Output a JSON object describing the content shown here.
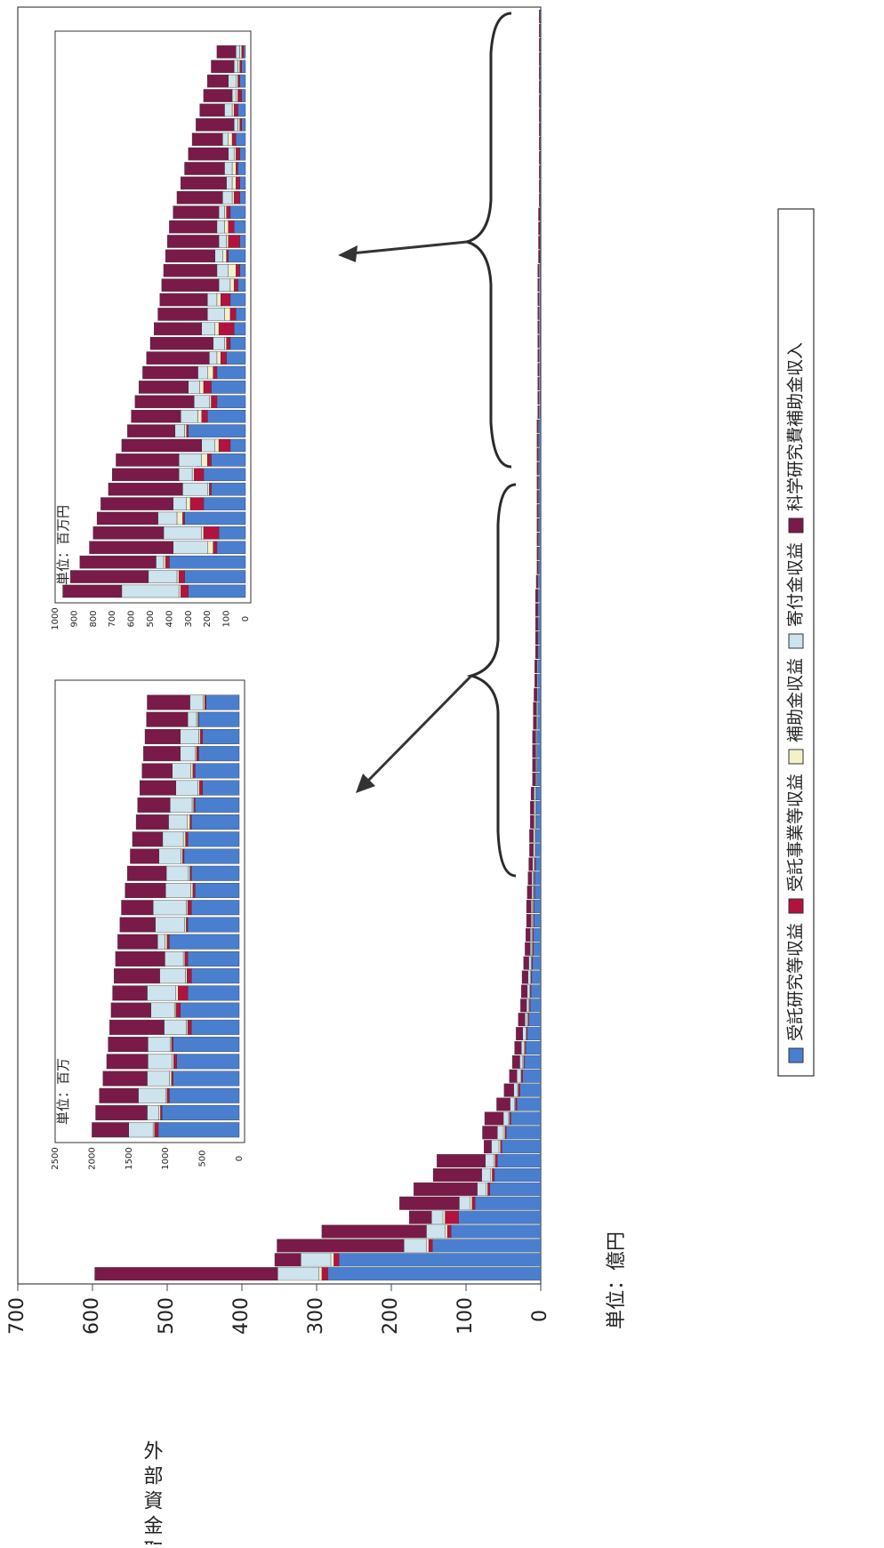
{
  "chart_data": [
    {
      "type": "bar",
      "stacked": true,
      "orientation": "horizontal-in-rotated-page",
      "ylabel": "外部資金取得額",
      "unit": "単位：億円",
      "ylim": [
        0,
        700
      ],
      "yticks": [
        "0",
        "100",
        "200",
        "300",
        "400",
        "500",
        "600",
        "700"
      ],
      "legend_position": "right-vertical",
      "colors": [
        "#4a7fd0",
        "#b3123f",
        "#f4f0c8",
        "#cde3ee",
        "#7a1a48"
      ],
      "series": [
        {
          "name": "受託研究等収益",
          "values": [
            285,
            270,
            145,
            120,
            110,
            88,
            68,
            62,
            58,
            52,
            46,
            40,
            32,
            28,
            24,
            22,
            20,
            18,
            16,
            14,
            13,
            12,
            11,
            10,
            10,
            9,
            9,
            8,
            8,
            7,
            7,
            7,
            6,
            6,
            6,
            5,
            5,
            5,
            5,
            4,
            4,
            4,
            4,
            4,
            3,
            3,
            3,
            3,
            3,
            3,
            2,
            2,
            2,
            2,
            2,
            2,
            2,
            2,
            2,
            2,
            2,
            1,
            1,
            1,
            1,
            1,
            1,
            1,
            1,
            1,
            1,
            1,
            1,
            1,
            1,
            1,
            1,
            1,
            1,
            1,
            1,
            1,
            1,
            1,
            1,
            1,
            1,
            1,
            1,
            1
          ]
        },
        {
          "name": "受託事業等収益",
          "values": [
            8,
            7,
            5,
            5,
            18,
            4,
            3,
            3,
            3,
            2,
            2,
            2,
            2,
            2,
            2,
            1,
            1,
            1,
            1,
            1,
            1,
            1,
            1,
            1,
            1,
            1,
            1,
            1,
            1,
            1,
            0,
            0,
            0,
            0,
            0,
            0,
            0,
            0,
            0,
            0,
            0,
            0,
            0,
            0,
            0,
            0,
            0,
            0,
            0,
            0,
            0,
            0,
            0,
            0,
            0,
            0,
            0,
            0,
            0,
            0,
            0,
            0,
            0,
            0,
            0,
            0,
            0,
            0,
            0,
            0,
            0,
            0,
            0,
            0,
            0,
            0,
            0,
            0,
            0,
            0,
            0,
            0,
            0,
            0,
            0,
            0,
            0,
            0,
            0,
            0
          ]
        },
        {
          "name": "補助金収益",
          "values": [
            4,
            4,
            3,
            3,
            3,
            3,
            2,
            2,
            2,
            2,
            2,
            1,
            1,
            1,
            1,
            1,
            1,
            1,
            1,
            1,
            1,
            1,
            1,
            1,
            1,
            1,
            1,
            1,
            1,
            1,
            1,
            1,
            1,
            1,
            1,
            1,
            1,
            1,
            1,
            1,
            1,
            0,
            0,
            0,
            0,
            0,
            0,
            0,
            0,
            0,
            0,
            0,
            0,
            0,
            0,
            0,
            0,
            0,
            0,
            0,
            0,
            0,
            0,
            0,
            0,
            0,
            0,
            0,
            0,
            0,
            0,
            0,
            0,
            0,
            0,
            0,
            0,
            0,
            0,
            0,
            0,
            0,
            0,
            0,
            0,
            0,
            0,
            0,
            0,
            0
          ]
        },
        {
          "name": "寄付金収益",
          "values": [
            55,
            40,
            30,
            25,
            15,
            14,
            12,
            12,
            11,
            10,
            8,
            7,
            6,
            5,
            5,
            4,
            4,
            4,
            3,
            3,
            3,
            3,
            3,
            2,
            2,
            2,
            2,
            2,
            2,
            2,
            2,
            2,
            2,
            2,
            2,
            1,
            1,
            1,
            1,
            1,
            1,
            1,
            1,
            1,
            1,
            1,
            1,
            1,
            1,
            1,
            1,
            1,
            1,
            1,
            1,
            1,
            1,
            1,
            1,
            1,
            1,
            1,
            1,
            1,
            1,
            1,
            1,
            1,
            1,
            1,
            1,
            1,
            0,
            0,
            0,
            0,
            0,
            0,
            0,
            0,
            0,
            0,
            0,
            0,
            0,
            0,
            0,
            0,
            0,
            0
          ]
        },
        {
          "name": "科学研究費補助金収入",
          "values": [
            245,
            35,
            170,
            140,
            30,
            80,
            85,
            65,
            65,
            10,
            20,
            25,
            18,
            13,
            10,
            10,
            9,
            9,
            9,
            8,
            8,
            8,
            7,
            7,
            6,
            6,
            6,
            6,
            5,
            5,
            5,
            5,
            5,
            5,
            4,
            4,
            4,
            4,
            4,
            4,
            4,
            4,
            3,
            3,
            3,
            3,
            3,
            3,
            3,
            2,
            2,
            2,
            2,
            2,
            2,
            2,
            2,
            2,
            2,
            2,
            2,
            2,
            2,
            2,
            2,
            2,
            2,
            2,
            2,
            2,
            2,
            2,
            2,
            2,
            2,
            2,
            1,
            1,
            1,
            1,
            1,
            1,
            1,
            1,
            1,
            1,
            1,
            1,
            1,
            1
          ]
        }
      ]
    },
    {
      "type": "bar",
      "stacked": true,
      "unit": "単位：百万",
      "ylim": [
        0,
        2500
      ],
      "yticks": [
        "0",
        "500",
        "1000",
        "1500",
        "2000",
        "2500"
      ],
      "values_total": [
        2000,
        1950,
        1900,
        1850,
        1800,
        1780,
        1760,
        1740,
        1720,
        1700,
        1680,
        1650,
        1620,
        1600,
        1550,
        1520,
        1480,
        1450,
        1400,
        1380,
        1350,
        1320,
        1300,
        1280,
        1260,
        1250
      ],
      "series": [
        {
          "name": "受託研究等収益",
          "values": [
            1100,
            1050,
            950,
            900,
            850,
            900,
            650,
            800,
            700,
            650,
            700,
            950,
            700,
            650,
            600,
            650,
            750,
            700,
            650,
            600,
            500,
            600,
            550,
            500,
            550,
            450
          ]
        },
        {
          "name": "受託事業等収益",
          "values": [
            50,
            20,
            30,
            20,
            40,
            20,
            50,
            60,
            130,
            60,
            40,
            30,
            20,
            50,
            30,
            20,
            20,
            30,
            20,
            20,
            40,
            30,
            30,
            30,
            10,
            20
          ]
        },
        {
          "name": "補助金収益",
          "values": [
            20,
            20,
            20,
            30,
            20,
            20,
            20,
            20,
            30,
            20,
            20,
            30,
            20,
            20,
            30,
            20,
            20,
            30,
            40,
            20,
            20,
            30,
            20,
            20,
            20,
            20
          ]
        },
        {
          "name": "寄付金収益",
          "values": [
            330,
            160,
            370,
            300,
            330,
            300,
            300,
            320,
            390,
            350,
            250,
            100,
            400,
            450,
            340,
            300,
            300,
            280,
            250,
            300,
            300,
            250,
            200,
            250,
            120,
            180
          ]
        },
        {
          "name": "科学研究費補助金収入",
          "values": [
            500,
            700,
            530,
            600,
            560,
            540,
            740,
            540,
            470,
            620,
            670,
            540,
            480,
            430,
            550,
            530,
            390,
            410,
            440,
            440,
            490,
            410,
            500,
            480,
            560,
            580
          ]
        }
      ]
    },
    {
      "type": "bar",
      "stacked": true,
      "unit": "単位：百万円",
      "ylim": [
        0,
        1000
      ],
      "yticks": [
        "0",
        "100",
        "200",
        "300",
        "400",
        "500",
        "600",
        "700",
        "800",
        "900",
        "1000"
      ],
      "values_total": [
        960,
        920,
        870,
        820,
        800,
        780,
        760,
        720,
        700,
        680,
        650,
        620,
        600,
        580,
        560,
        540,
        520,
        500,
        480,
        460,
        450,
        440,
        430,
        420,
        410,
        400,
        380,
        360,
        340,
        320,
        300,
        280,
        260,
        240,
        220,
        200,
        180,
        150
      ],
      "series": [
        {
          "name": "受託研究等収益",
          "values": [
            300,
            320,
            400,
            150,
            140,
            320,
            220,
            180,
            220,
            180,
            80,
            300,
            200,
            150,
            180,
            150,
            100,
            80,
            60,
            50,
            80,
            40,
            30,
            90,
            30,
            60,
            80,
            30,
            30,
            40,
            30,
            50,
            20,
            40,
            20,
            30,
            20,
            10
          ]
        },
        {
          "name": "受託事業等収益",
          "values": [
            40,
            30,
            20,
            20,
            80,
            10,
            70,
            10,
            50,
            20,
            60,
            10,
            30,
            30,
            40,
            20,
            30,
            20,
            80,
            30,
            50,
            20,
            20,
            10,
            60,
            30,
            20,
            30,
            20,
            10,
            20,
            20,
            10,
            20,
            20,
            10,
            10,
            10
          ]
        },
        {
          "name": "補助金収益",
          "values": [
            10,
            10,
            10,
            30,
            10,
            30,
            20,
            10,
            10,
            30,
            20,
            10,
            20,
            10,
            20,
            30,
            20,
            10,
            20,
            30,
            20,
            20,
            40,
            20,
            10,
            20,
            10,
            10,
            20,
            20,
            10,
            20,
            10,
            10,
            10,
            10,
            10,
            10
          ]
        },
        {
          "name": "寄付金収益",
          "values": [
            300,
            150,
            40,
            180,
            200,
            100,
            70,
            130,
            70,
            120,
            70,
            50,
            90,
            80,
            60,
            50,
            40,
            60,
            70,
            90,
            50,
            60,
            60,
            40,
            40,
            40,
            30,
            50,
            30,
            40,
            30,
            30,
            20,
            40,
            20,
            40,
            20,
            20
          ]
        },
        {
          "name": "科学研究費補助金収入",
          "values": [
            310,
            410,
            400,
            440,
            370,
            320,
            380,
            390,
            350,
            330,
            420,
            250,
            260,
            310,
            260,
            290,
            330,
            330,
            250,
            260,
            250,
            300,
            280,
            260,
            270,
            250,
            240,
            240,
            240,
            210,
            210,
            160,
            200,
            130,
            150,
            110,
            120,
            100
          ]
        }
      ]
    }
  ]
}
